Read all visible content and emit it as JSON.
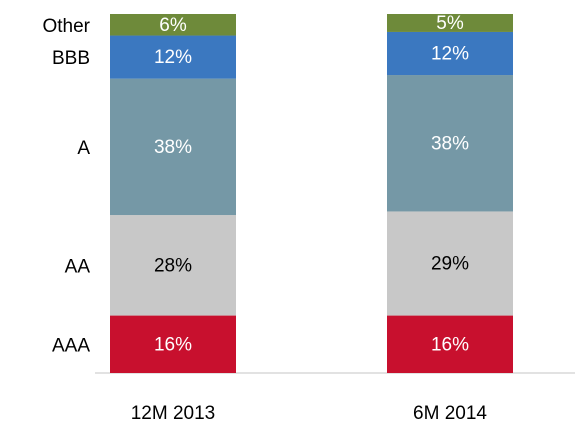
{
  "chart_data": {
    "type": "stacked_bar",
    "categories": [
      "12M 2013",
      "6M 2014"
    ],
    "ylim": [
      0,
      100
    ],
    "series": [
      {
        "name": "AAA",
        "color": "#c8102e",
        "label_color": "#ffffff",
        "values": [
          16,
          16
        ],
        "value_labels": [
          "16%",
          "16%"
        ]
      },
      {
        "name": "AA",
        "color": "#c8c8c8",
        "label_color": "#000000",
        "values": [
          28,
          29
        ],
        "value_labels": [
          "28%",
          "29%"
        ]
      },
      {
        "name": "A",
        "color": "#7598a6",
        "label_color": "#ffffff",
        "values": [
          38,
          38
        ],
        "value_labels": [
          "38%",
          "38%"
        ]
      },
      {
        "name": "BBB",
        "color": "#3b78c0",
        "label_color": "#ffffff",
        "values": [
          12,
          12
        ],
        "value_labels": [
          "12%",
          "12%"
        ]
      },
      {
        "name": "Other",
        "color": "#6e8a3a",
        "label_color": "#ffffff",
        "values": [
          6,
          5
        ],
        "value_labels": [
          "6%",
          "5%"
        ]
      }
    ]
  }
}
